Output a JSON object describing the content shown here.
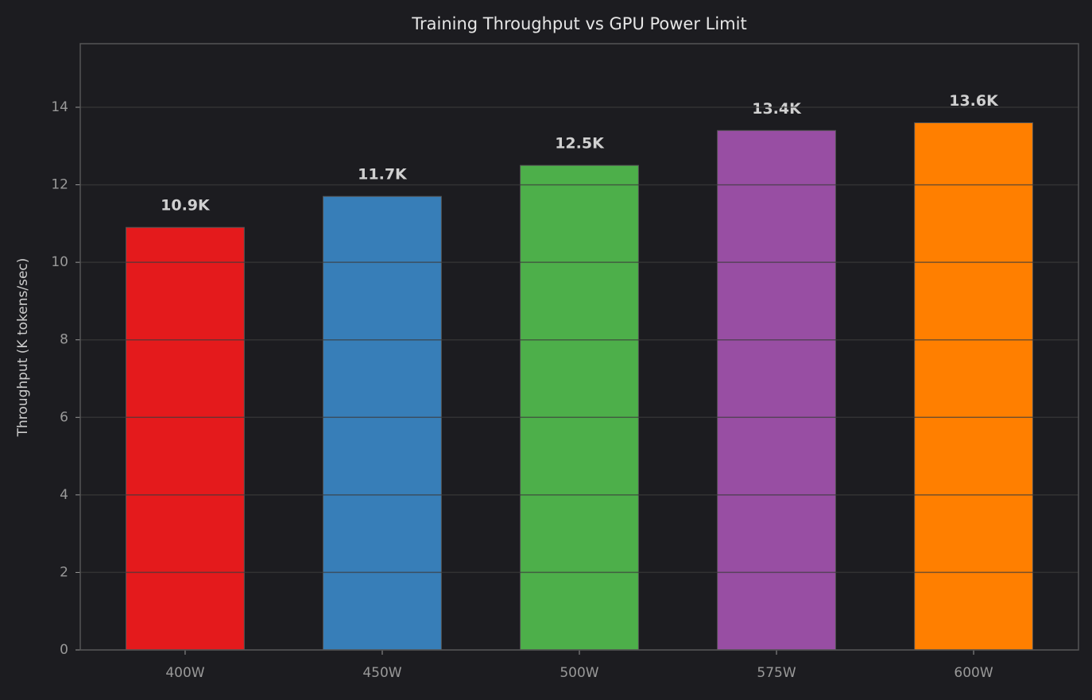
{
  "chart_data": {
    "type": "bar",
    "title": "Training Throughput vs GPU Power Limit",
    "y_label": "Throughput (K tokens/sec)",
    "categories": [
      "400W",
      "450W",
      "500W",
      "575W",
      "600W"
    ],
    "values": [
      10.9,
      11.7,
      12.5,
      13.4,
      13.6
    ],
    "value_labels": [
      "10.9K",
      "11.7K",
      "12.5K",
      "13.4K",
      "13.6K"
    ],
    "colors": [
      "#e41a1c",
      "#377eb8",
      "#4daf4a",
      "#984ea3",
      "#ff7f00"
    ],
    "ylim": [
      0,
      15.64
    ],
    "yticks": [
      0,
      2,
      4,
      6,
      8,
      10,
      12,
      14
    ],
    "grid": true
  }
}
